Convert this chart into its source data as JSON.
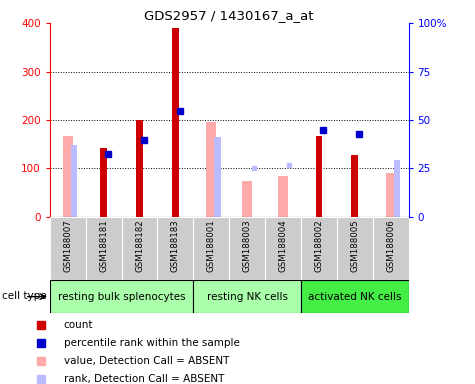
{
  "title": "GDS2957 / 1430167_a_at",
  "samples": [
    "GSM188007",
    "GSM188181",
    "GSM188182",
    "GSM188183",
    "GSM188001",
    "GSM188003",
    "GSM188004",
    "GSM188002",
    "GSM188005",
    "GSM188006"
  ],
  "groups": [
    {
      "label": "resting bulk splenocytes",
      "start": 0,
      "end": 4,
      "color": "#aaffaa"
    },
    {
      "label": "resting NK cells",
      "start": 4,
      "end": 7,
      "color": "#aaffaa"
    },
    {
      "label": "activated NK cells",
      "start": 7,
      "end": 10,
      "color": "#44ee44"
    }
  ],
  "count_values": [
    0,
    142,
    200,
    390,
    0,
    0,
    0,
    168,
    128,
    0
  ],
  "percentile_values": [
    0,
    130,
    158,
    218,
    0,
    0,
    0,
    180,
    172,
    0
  ],
  "absent_value_bars": [
    168,
    0,
    0,
    0,
    195,
    75,
    85,
    0,
    0,
    90
  ],
  "absent_rank_bars": [
    148,
    0,
    0,
    0,
    165,
    0,
    0,
    0,
    0,
    118
  ],
  "absent_rank_dots": [
    false,
    false,
    false,
    false,
    false,
    true,
    true,
    false,
    false,
    false
  ],
  "absent_rank_dot_vals": [
    0,
    0,
    0,
    0,
    0,
    100,
    108,
    0,
    0,
    0
  ],
  "ylim_left": [
    0,
    400
  ],
  "ylim_right": [
    0,
    100
  ],
  "yticks_left": [
    0,
    100,
    200,
    300,
    400
  ],
  "yticks_right": [
    0,
    25,
    50,
    75,
    100
  ],
  "ytick_right_labels": [
    "0",
    "25",
    "50",
    "75",
    "100%"
  ],
  "count_color": "#cc0000",
  "percentile_color": "#0000cc",
  "absent_value_color": "#ffaaaa",
  "absent_rank_color": "#bbbbff",
  "sample_bg_color": "#cccccc",
  "legend_items": [
    {
      "color": "#cc0000",
      "label": "count"
    },
    {
      "color": "#0000cc",
      "label": "percentile rank within the sample"
    },
    {
      "color": "#ffaaaa",
      "label": "value, Detection Call = ABSENT"
    },
    {
      "color": "#bbbbff",
      "label": "rank, Detection Call = ABSENT"
    }
  ]
}
